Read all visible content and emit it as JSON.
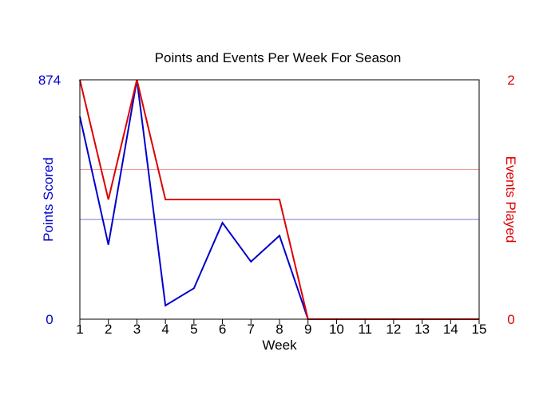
{
  "chart_data": {
    "type": "line",
    "title": "Points and Events Per Week For Season",
    "xlabel": "Week",
    "x": [
      1,
      2,
      3,
      4,
      5,
      6,
      7,
      8,
      9,
      10,
      11,
      12,
      13,
      14,
      15
    ],
    "xlim": [
      1,
      15
    ],
    "series": [
      {
        "name": "Points Scored",
        "axis": "left",
        "color": "#0000cc",
        "values": [
          740,
          272,
          874,
          50,
          113,
          352,
          210,
          305,
          0,
          0,
          0,
          0,
          0,
          0,
          0
        ]
      },
      {
        "name": "Events Played",
        "axis": "right",
        "color": "#dd0000",
        "values": [
          2,
          1,
          2,
          1,
          1,
          1,
          1,
          1,
          0,
          0,
          0,
          0,
          0,
          0,
          0
        ]
      }
    ],
    "left_axis": {
      "label": "Points Scored",
      "ylim": [
        0,
        874
      ],
      "tick_labels": [
        "0",
        "874"
      ],
      "color": "#0000cc",
      "average": 364
    },
    "right_axis": {
      "label": "Events Played",
      "ylim": [
        0,
        2
      ],
      "tick_labels": [
        "0",
        "2"
      ],
      "color": "#dd0000",
      "average": 1.25
    },
    "average_line_colors": {
      "left": "#7777cc",
      "right": "#ee9999"
    },
    "grid": false,
    "legend": "none"
  }
}
